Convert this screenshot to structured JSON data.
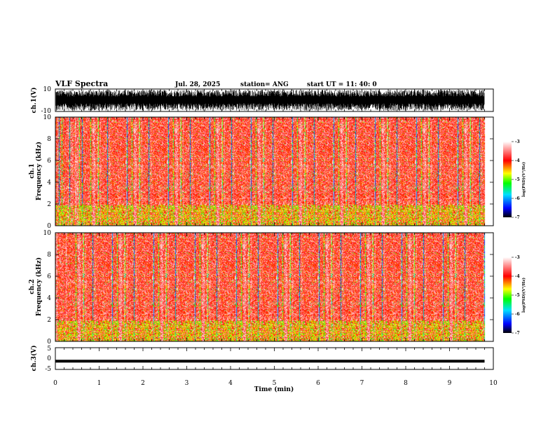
{
  "header": {
    "title": "VLF Spectra",
    "date": "Jul. 28, 2025",
    "station": "station= ANG",
    "start": "start UT = 11: 40: 0"
  },
  "colors": {
    "background": "#ffffff",
    "axes": "#000000",
    "colormap": [
      "#000000",
      "#0000ff",
      "#00e0ff",
      "#00ff00",
      "#ffff00",
      "#ff0000",
      "#ffffff"
    ]
  },
  "chart_data": [
    {
      "type": "line",
      "ylabel": "ch.1(V)",
      "yticks": [
        "10",
        "-10"
      ],
      "ylim": [
        -10,
        10
      ],
      "xlim": [
        0,
        10
      ],
      "description_values": {
        "amplitude_min": -10,
        "amplitude_max": 10,
        "data_end_min": 9.8
      }
    },
    {
      "type": "heatmap",
      "ylabel": "ch.1 Frequency (kHz)",
      "yticks": [
        "0",
        "2",
        "4",
        "6",
        "8",
        "10"
      ],
      "ylim": [
        0,
        10
      ],
      "xlim": [
        0,
        10
      ],
      "colorbar": {
        "label": "log(PSD)(V²/Hz)",
        "min": -7,
        "max": -3,
        "ticks": [
          "-3",
          "-4",
          "-5",
          "-6",
          "-7"
        ]
      }
    },
    {
      "type": "heatmap",
      "ylabel": "ch.2 Frequency (kHz)",
      "yticks": [
        "0",
        "2",
        "4",
        "6",
        "8",
        "10"
      ],
      "ylim": [
        0,
        10
      ],
      "xlim": [
        0,
        10
      ],
      "colorbar": {
        "label": "log(PSD)(V²/Hz)",
        "min": -7,
        "max": -3,
        "ticks": [
          "-3",
          "-4",
          "-5",
          "-6",
          "-7"
        ]
      }
    },
    {
      "type": "line",
      "ylabel": "ch.3(V)",
      "yticks": [
        "5",
        "0",
        "-5"
      ],
      "ylim": [
        -5,
        5
      ],
      "xlim": [
        0,
        10
      ],
      "values": {
        "x": [
          0,
          9.8
        ],
        "y": [
          -1.2,
          -1.2
        ]
      }
    }
  ],
  "xaxis": {
    "label": "Time (min)",
    "ticks": [
      "0",
      "1",
      "2",
      "3",
      "4",
      "5",
      "6",
      "7",
      "8",
      "9",
      "10"
    ],
    "xlim": [
      0,
      10
    ]
  }
}
